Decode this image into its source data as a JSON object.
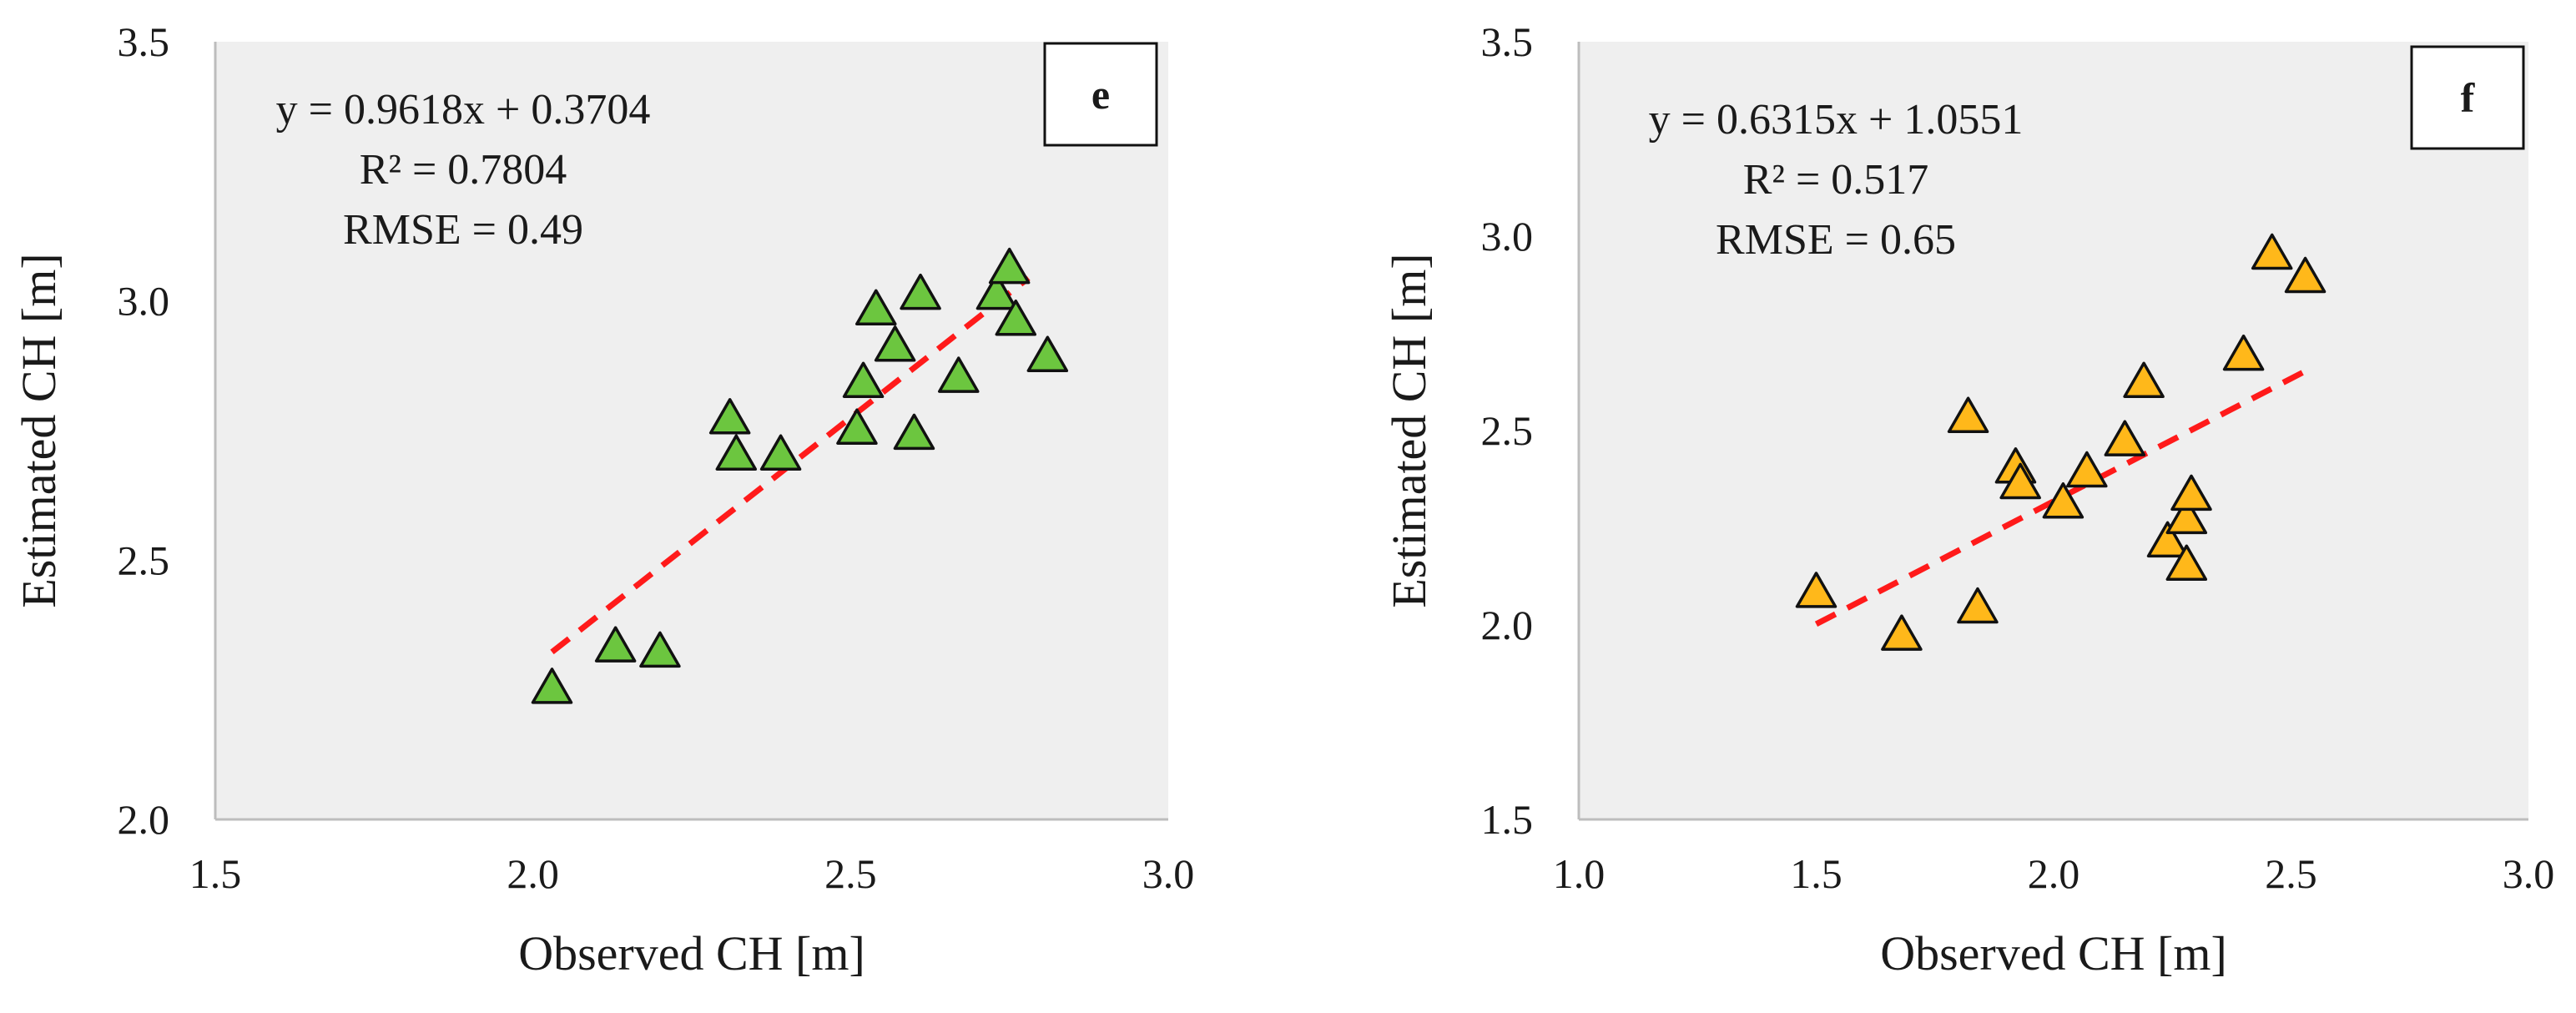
{
  "chart_data": [
    {
      "type": "scatter",
      "panel_label": "e",
      "xlabel": "Observed CH [m]",
      "ylabel": "Estimated CH [m]",
      "xlim": [
        1.5,
        3.0
      ],
      "ylim": [
        2.0,
        3.5
      ],
      "xticks": [
        "1.5",
        "2.0",
        "2.5",
        "3.0"
      ],
      "yticks": [
        "2.0",
        "2.5",
        "3.0",
        "3.5"
      ],
      "grid": false,
      "marker_color": "#6cc63f",
      "trend_color": "#ff1a1a",
      "annotations": [
        "y = 0.9618x + 0.3704",
        "R² = 0.7804",
        "RMSE = 0.49"
      ],
      "trendline": {
        "slope": 0.9618,
        "intercept": 0.3704,
        "x_range": [
          2.03,
          2.78
        ]
      },
      "series": [
        {
          "name": "e",
          "points": [
            [
              2.03,
              2.25
            ],
            [
              2.13,
              2.33
            ],
            [
              2.2,
              2.32
            ],
            [
              2.31,
              2.77
            ],
            [
              2.32,
              2.7
            ],
            [
              2.39,
              2.7
            ],
            [
              2.51,
              2.75
            ],
            [
              2.52,
              2.84
            ],
            [
              2.54,
              2.98
            ],
            [
              2.57,
              2.91
            ],
            [
              2.6,
              2.74
            ],
            [
              2.61,
              3.01
            ],
            [
              2.67,
              2.85
            ],
            [
              2.73,
              3.01
            ],
            [
              2.75,
              3.06
            ],
            [
              2.76,
              2.96
            ],
            [
              2.81,
              2.89
            ]
          ]
        }
      ]
    },
    {
      "type": "scatter",
      "panel_label": "f",
      "xlabel": "Observed CH [m]",
      "ylabel": "Estimated CH [m]",
      "xlim": [
        1.0,
        3.0
      ],
      "ylim": [
        1.5,
        3.5
      ],
      "xticks": [
        "1.0",
        "1.5",
        "2.0",
        "2.5",
        "3.0"
      ],
      "yticks": [
        "1.5",
        "2.0",
        "2.5",
        "3.0",
        "3.5"
      ],
      "grid": false,
      "marker_color": "#ffb81a",
      "trend_color": "#ff1a1a",
      "annotations": [
        "y = 0.6315x + 1.0551",
        "R² = 0.517",
        "RMSE = 0.65"
      ],
      "trendline": {
        "slope": 0.6315,
        "intercept": 1.0551,
        "x_range": [
          1.5,
          2.53
        ]
      },
      "series": [
        {
          "name": "f",
          "points": [
            [
              1.5,
              2.08
            ],
            [
              1.68,
              1.97
            ],
            [
              1.82,
              2.53
            ],
            [
              1.84,
              2.04
            ],
            [
              1.92,
              2.4
            ],
            [
              1.93,
              2.36
            ],
            [
              2.02,
              2.31
            ],
            [
              2.07,
              2.39
            ],
            [
              2.15,
              2.47
            ],
            [
              2.19,
              2.62
            ],
            [
              2.24,
              2.21
            ],
            [
              2.28,
              2.15
            ],
            [
              2.28,
              2.27
            ],
            [
              2.29,
              2.33
            ],
            [
              2.4,
              2.69
            ],
            [
              2.46,
              2.95
            ],
            [
              2.53,
              2.89
            ]
          ]
        }
      ]
    }
  ]
}
